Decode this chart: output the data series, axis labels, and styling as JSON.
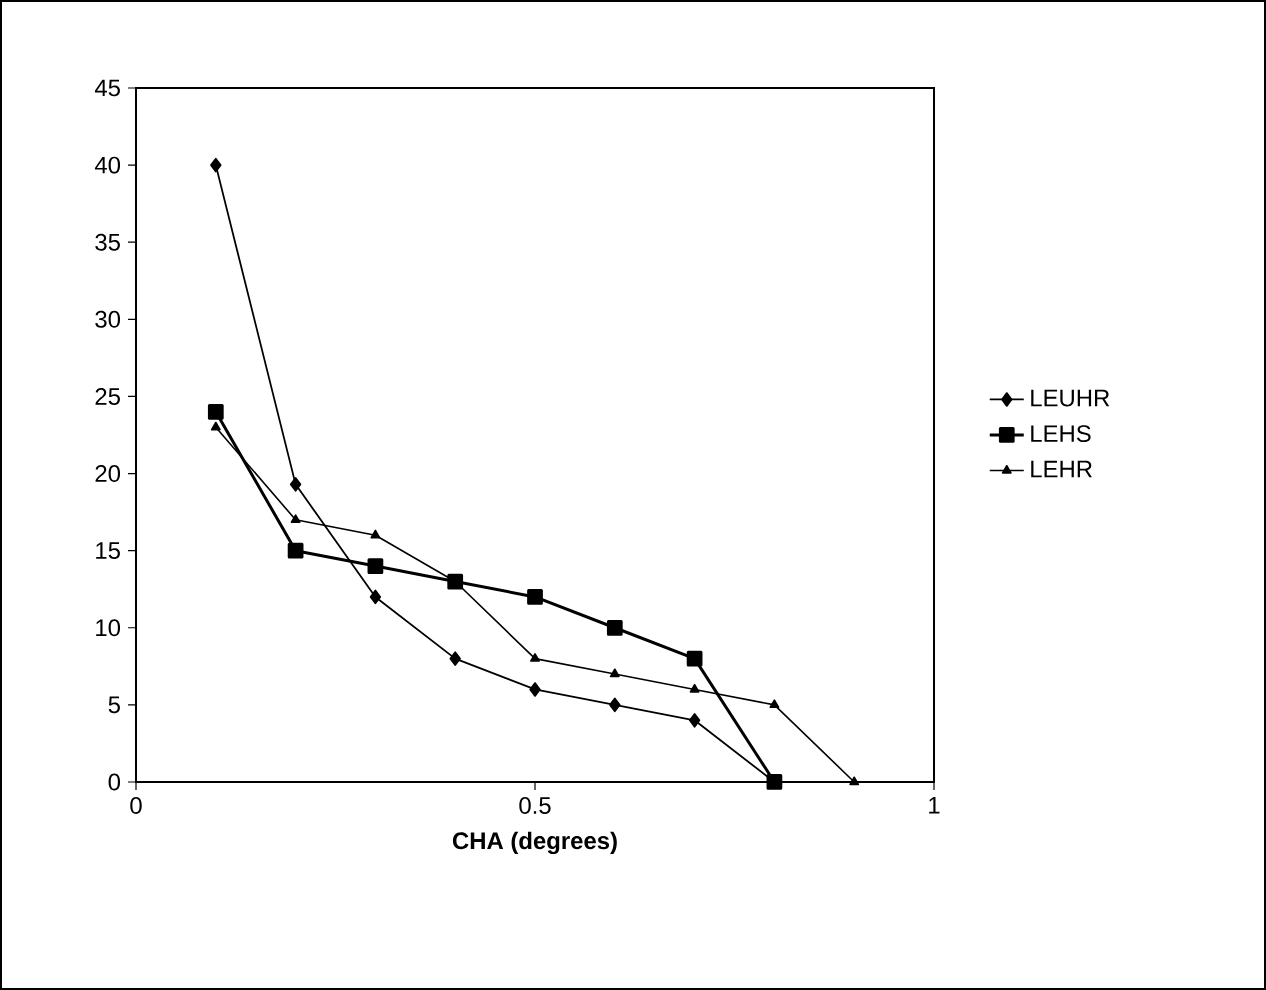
{
  "chart_data": {
    "type": "line",
    "xlabel": "CHA (degrees)",
    "xlim": [
      0,
      1
    ],
    "xticks": [
      0,
      0.5,
      1
    ],
    "ylim": [
      0,
      45
    ],
    "yticks": [
      0,
      5,
      10,
      15,
      20,
      25,
      30,
      35,
      40,
      45
    ],
    "grid": false,
    "legend": "right",
    "series": [
      {
        "name": "LEUHR",
        "color": "#000000",
        "marker": "diamond",
        "x": [
          0.1,
          0.2,
          0.3,
          0.4,
          0.5,
          0.6,
          0.7,
          0.8
        ],
        "values": [
          40,
          19.3,
          12,
          8,
          6,
          5,
          4,
          0
        ]
      },
      {
        "name": "LEHS",
        "color": "#000000",
        "marker": "square",
        "x": [
          0.1,
          0.2,
          0.3,
          0.4,
          0.5,
          0.6,
          0.7,
          0.8
        ],
        "values": [
          24,
          15,
          14,
          13,
          12,
          10,
          8,
          0
        ]
      },
      {
        "name": "LEHR",
        "color": "#000000",
        "marker": "triangle",
        "x": [
          0.1,
          0.2,
          0.3,
          0.4,
          0.5,
          0.6,
          0.7,
          0.8,
          0.9
        ],
        "values": [
          23,
          17,
          16,
          13,
          8,
          7,
          6,
          5,
          0
        ]
      }
    ]
  }
}
